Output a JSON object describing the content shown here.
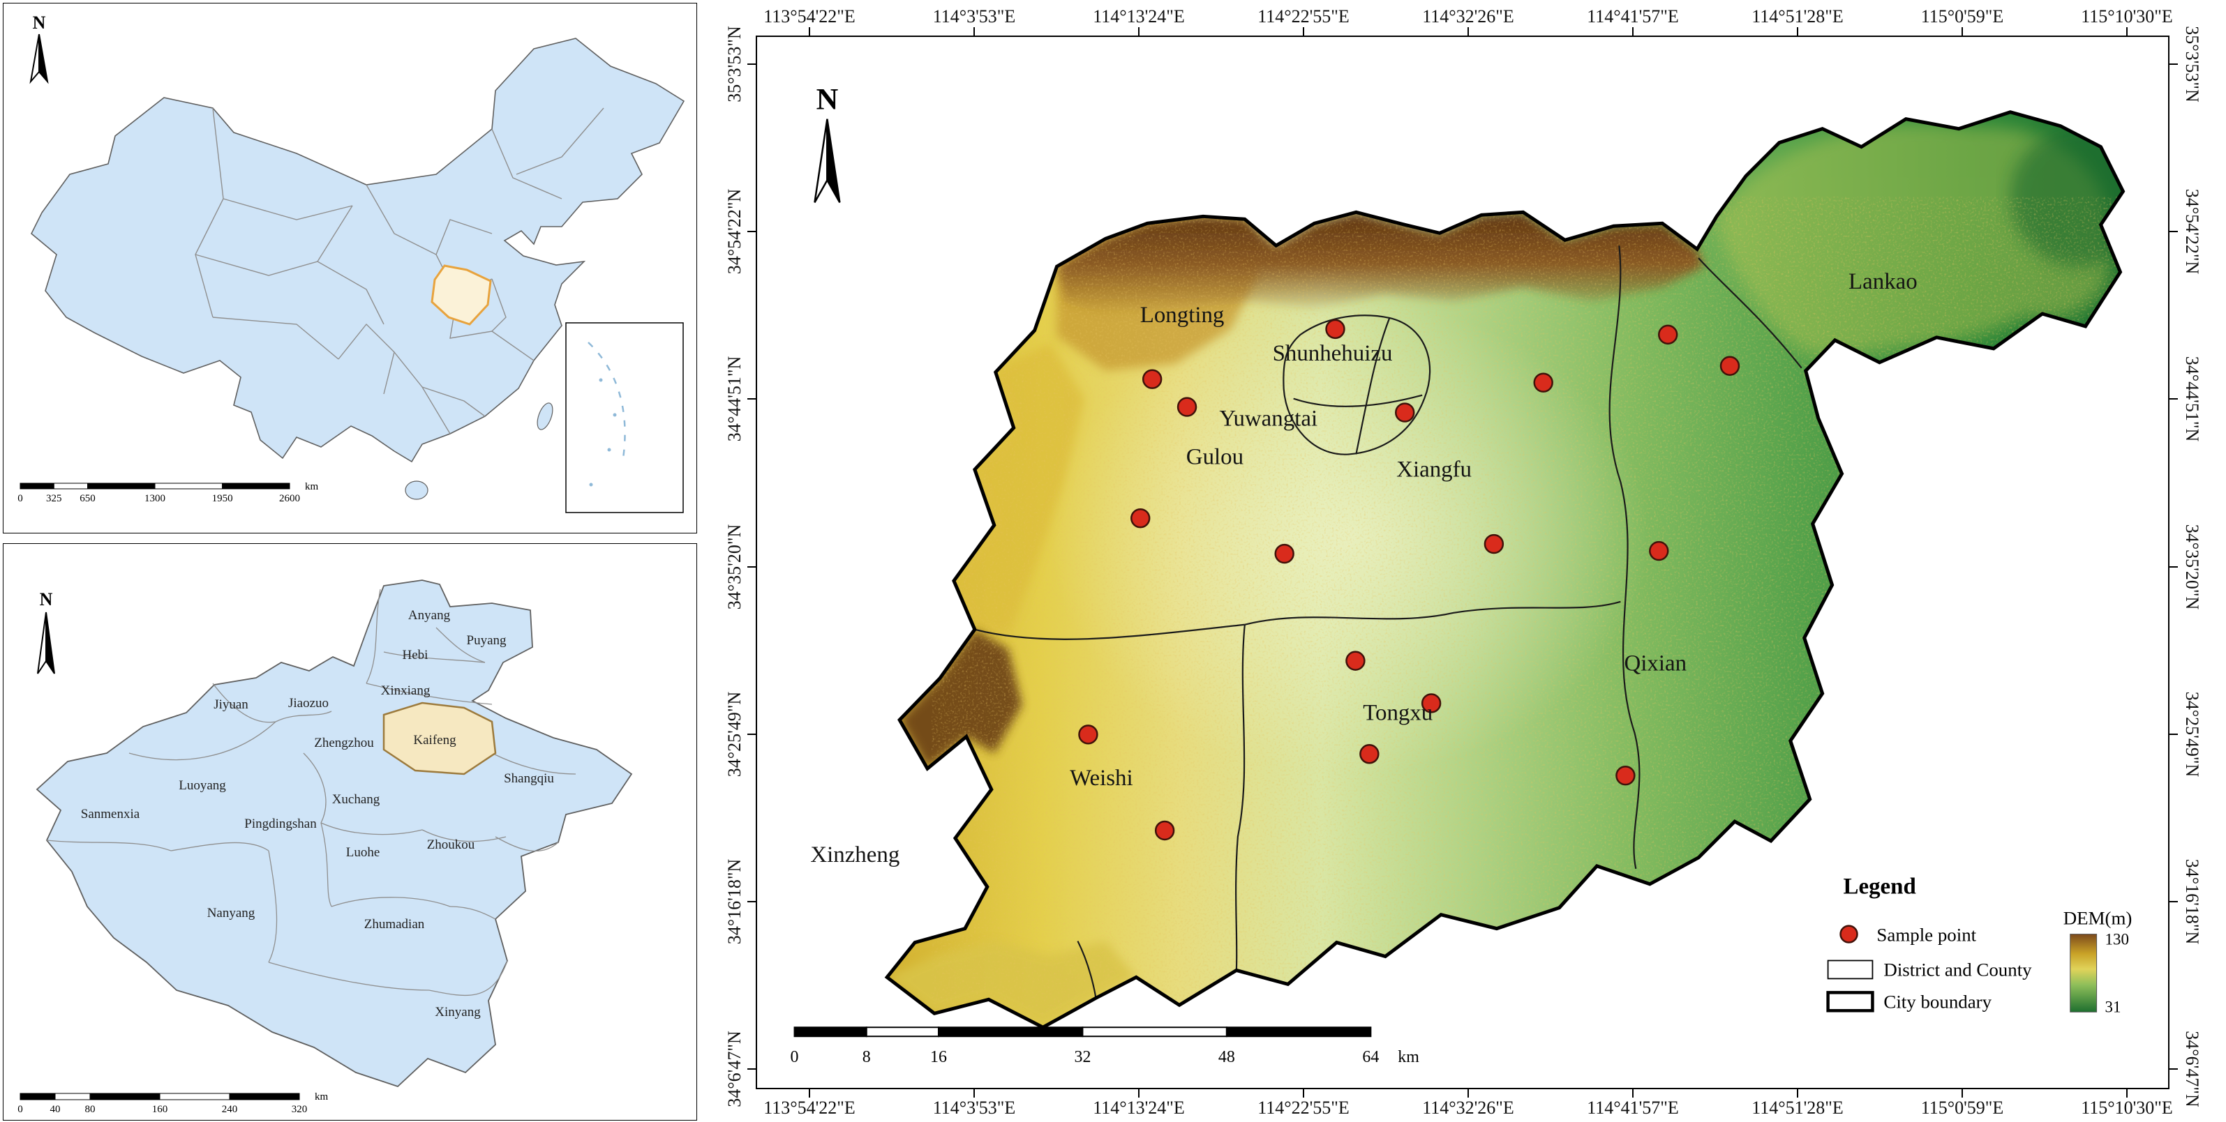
{
  "colors": {
    "inset_fill": "#cfe4f7",
    "inset_border": "#5f5f5f",
    "henan_highlight_stroke": "#e8a33d",
    "kaifeng_fill": "#f6e8c1",
    "kaifeng_stroke": "#9c7a3c",
    "sample_point": "#d92b1c",
    "dem_high": "#7c4a1c",
    "dem_mid": "#e0d35a",
    "dem_low": "#1e6f2f"
  },
  "china_inset": {
    "north_label": "N",
    "scalebar": {
      "labels": [
        "0",
        "325",
        "650",
        "1300",
        "1950",
        "2600"
      ],
      "unit": "km"
    }
  },
  "henan_inset": {
    "north_label": "N",
    "cities": [
      "Anyang",
      "Puyang",
      "Hebi",
      "Xinxiang",
      "Jiyuan",
      "Jiaozuo",
      "Zhengzhou",
      "Kaifeng",
      "Luoyang",
      "Sanmenxia",
      "Pingdingshan",
      "Xuchang",
      "Shangqiu",
      "Luohe",
      "Zhoukou",
      "Nanyang",
      "Zhumadian",
      "Xinyang"
    ],
    "scalebar": {
      "labels": [
        "0",
        "40",
        "80",
        "160",
        "240",
        "320"
      ],
      "unit": "km"
    }
  },
  "main_map": {
    "north_label": "N",
    "longitude_labels": [
      "113°54'22\"E",
      "114°3'53\"E",
      "114°13'24\"E",
      "114°22'55\"E",
      "114°32'26\"E",
      "114°41'57\"E",
      "114°51'28\"E",
      "115°0'59\"E",
      "115°10'30\"E"
    ],
    "latitude_labels": [
      "35°3'53\"N",
      "34°54'22\"N",
      "34°44'51\"N",
      "34°35'20\"N",
      "34°25'49\"N",
      "34°16'18\"N",
      "34°6'47\"N"
    ],
    "districts": [
      "Longting",
      "Shunhehuizu",
      "Yuwangtai",
      "Gulou",
      "Xiangfu",
      "Lankao",
      "Qixian",
      "Tongxu",
      "Weishi",
      "Xinzheng"
    ],
    "sample_points": [
      [
        567,
        492
      ],
      [
        830,
        420
      ],
      [
        617,
        532
      ],
      [
        930,
        540
      ],
      [
        1129,
        497
      ],
      [
        1308,
        428
      ],
      [
        1397,
        473
      ],
      [
        550,
        692
      ],
      [
        757,
        743
      ],
      [
        1058,
        729
      ],
      [
        1295,
        739
      ],
      [
        859,
        897
      ],
      [
        968,
        958
      ],
      [
        475,
        1003
      ],
      [
        879,
        1031
      ],
      [
        1247,
        1062
      ],
      [
        585,
        1141
      ]
    ],
    "scalebar": {
      "labels": [
        "0",
        "8",
        "16",
        "32",
        "48",
        "64"
      ],
      "unit": "km"
    },
    "legend": {
      "title": "Legend",
      "items": [
        "Sample point",
        "District and County",
        "City boundary"
      ],
      "dem_title": "DEM(m)",
      "dem_max": "130",
      "dem_min": "31"
    }
  }
}
